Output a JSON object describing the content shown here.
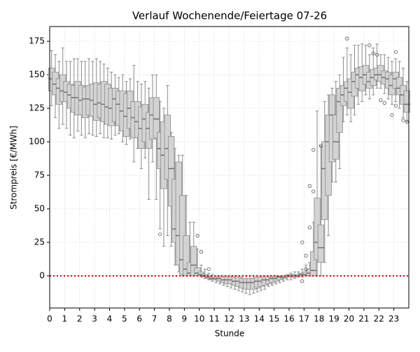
{
  "chart_data": {
    "type": "box",
    "title": "Verlauf Wochenende/Feiertage 07-26",
    "xlabel": "Stunde",
    "ylabel": "Strompreis [€/MWh]",
    "xlim": [
      0,
      24
    ],
    "xticks": [
      0,
      1,
      2,
      3,
      4,
      5,
      6,
      7,
      8,
      9,
      10,
      11,
      12,
      13,
      14,
      15,
      16,
      17,
      18,
      19,
      20,
      21,
      22,
      23
    ],
    "ylim": [
      -24,
      186
    ],
    "yticks": [
      0,
      25,
      50,
      75,
      100,
      125,
      150,
      175
    ],
    "grid": true,
    "box_color": "#d3d3d3",
    "edge_color": "#8c8c8c",
    "median_color": "#6e6e6e",
    "hline": {
      "value": 0,
      "color": "#e00000"
    },
    "x": [
      0.125,
      0.375,
      0.625,
      0.875,
      1.125,
      1.375,
      1.625,
      1.875,
      2.125,
      2.375,
      2.625,
      2.875,
      3.125,
      3.375,
      3.625,
      3.875,
      4.125,
      4.375,
      4.625,
      4.875,
      5.125,
      5.375,
      5.625,
      5.875,
      6.125,
      6.375,
      6.625,
      6.875,
      7.125,
      7.375,
      7.625,
      7.875,
      8.125,
      8.375,
      8.625,
      8.875,
      9.125,
      9.375,
      9.625,
      9.875,
      10.125,
      10.375,
      10.625,
      10.875,
      11.125,
      11.375,
      11.625,
      11.875,
      12.125,
      12.375,
      12.625,
      12.875,
      13.125,
      13.375,
      13.625,
      13.875,
      14.125,
      14.375,
      14.625,
      14.875,
      15.125,
      15.375,
      15.625,
      15.875,
      16.125,
      16.375,
      16.625,
      16.875,
      17.125,
      17.375,
      17.625,
      17.875,
      18.125,
      18.375,
      18.625,
      18.875,
      19.125,
      19.375,
      19.625,
      19.875,
      20.125,
      20.375,
      20.625,
      20.875,
      21.125,
      21.375,
      21.625,
      21.875,
      22.125,
      22.375,
      22.625,
      22.875,
      23.125,
      23.375,
      23.625,
      23.875
    ],
    "whislo": [
      127,
      118,
      110,
      113,
      110,
      105,
      103,
      108,
      105,
      103,
      106,
      105,
      104,
      106,
      103,
      103,
      102,
      105,
      106,
      100,
      98,
      102,
      85,
      95,
      80,
      88,
      57,
      85,
      57,
      35,
      22,
      30,
      22,
      8,
      3,
      0,
      0,
      0,
      0,
      0,
      -1,
      -2,
      -3,
      -4,
      -5,
      -6,
      -7,
      -8,
      -9,
      -10,
      -11,
      -12,
      -13,
      -14,
      -13,
      -12,
      -11,
      -10,
      -8,
      -7,
      -6,
      -5,
      -4,
      -3,
      -3,
      -2,
      -1,
      -1,
      0,
      0,
      0,
      0,
      0,
      10,
      30,
      70,
      70,
      80,
      115,
      120,
      115,
      120,
      128,
      130,
      135,
      132,
      135,
      140,
      140,
      136,
      132,
      128,
      130,
      125,
      118,
      115
    ],
    "q1": [
      138,
      135,
      128,
      130,
      130,
      125,
      122,
      120,
      120,
      118,
      120,
      119,
      116,
      118,
      115,
      113,
      112,
      115,
      112,
      108,
      104,
      110,
      103,
      103,
      95,
      100,
      95,
      102,
      103,
      80,
      65,
      72,
      52,
      25,
      8,
      1,
      0,
      0,
      0,
      0,
      0,
      -1,
      -2,
      -3,
      -3,
      -4,
      -5,
      -6,
      -6,
      -7,
      -8,
      -9,
      -10,
      -10,
      -10,
      -9,
      -8,
      -7,
      -6,
      -5,
      -4,
      -3,
      -2,
      -1,
      -1,
      -1,
      0,
      0,
      0,
      0,
      0,
      12,
      10,
      42,
      60,
      85,
      87,
      107,
      127,
      130,
      125,
      134,
      140,
      138,
      143,
      140,
      142,
      146,
      145,
      143,
      140,
      135,
      140,
      135,
      128,
      122
    ],
    "med": [
      147,
      143,
      140,
      138,
      137,
      135,
      133,
      133,
      131,
      132,
      132,
      131,
      128,
      129,
      128,
      126,
      125,
      132,
      128,
      123,
      119,
      125,
      118,
      115,
      110,
      117,
      110,
      120,
      117,
      95,
      90,
      95,
      80,
      35,
      30,
      12,
      5,
      2,
      8,
      2,
      1,
      0,
      -1,
      -2,
      -2,
      -2,
      -3,
      -3,
      -3,
      -4,
      -4,
      -5,
      -5,
      -5,
      -5,
      -4,
      -4,
      -3,
      -3,
      -2,
      -2,
      -1,
      -1,
      0,
      0,
      0,
      0,
      1,
      1,
      2,
      4,
      25,
      21,
      80,
      100,
      120,
      100,
      130,
      135,
      140,
      137,
      145,
      150,
      148,
      150,
      145,
      148,
      150,
      150,
      148,
      147,
      142,
      147,
      140,
      135,
      128
    ],
    "q3": [
      155,
      152,
      147,
      150,
      145,
      143,
      142,
      145,
      142,
      141,
      142,
      143,
      144,
      143,
      145,
      143,
      140,
      140,
      138,
      138,
      136,
      138,
      130,
      130,
      126,
      128,
      122,
      133,
      133,
      107,
      115,
      120,
      104,
      72,
      85,
      60,
      30,
      10,
      22,
      6,
      3,
      1,
      0,
      -1,
      -1,
      -1,
      -1,
      -1,
      -1,
      -1,
      -1,
      -2,
      -2,
      -2,
      -2,
      -1,
      -1,
      -1,
      -1,
      -1,
      -1,
      0,
      0,
      0,
      1,
      1,
      1,
      2,
      3,
      5,
      18,
      58,
      38,
      100,
      120,
      135,
      120,
      140,
      142,
      145,
      147,
      152,
      155,
      156,
      157,
      152,
      154,
      155,
      157,
      153,
      152,
      150,
      152,
      148,
      142,
      138
    ],
    "whishi": [
      168,
      165,
      160,
      170,
      160,
      160,
      162,
      162,
      160,
      160,
      162,
      160,
      162,
      160,
      158,
      155,
      152,
      150,
      148,
      150,
      145,
      147,
      157,
      145,
      143,
      145,
      140,
      150,
      150,
      130,
      125,
      142,
      107,
      95,
      90,
      90,
      60,
      40,
      40,
      20,
      8,
      5,
      2,
      1,
      0,
      0,
      0,
      0,
      0,
      0,
      0,
      0,
      0,
      0,
      0,
      0,
      0,
      0,
      0,
      0,
      0,
      0,
      0,
      1,
      2,
      3,
      3,
      5,
      8,
      10,
      40,
      123,
      97,
      130,
      135,
      140,
      145,
      150,
      163,
      170,
      165,
      172,
      172,
      173,
      172,
      165,
      170,
      173,
      165,
      165,
      163,
      160,
      162,
      160,
      155,
      145
    ],
    "outliers_x": [
      7.375,
      9.875,
      10.125,
      10.625,
      16.875,
      16.875,
      17.125,
      17.125,
      17.375,
      17.375,
      17.625,
      17.625,
      18.125,
      19.875,
      21.375,
      21.625,
      21.875,
      22.125,
      22.375,
      22.875,
      23.125,
      23.125,
      23.625,
      23.875
    ],
    "outliers_y": [
      31,
      30,
      18,
      5,
      25,
      -4,
      5,
      15,
      36,
      67,
      63,
      94,
      97,
      177,
      172,
      166,
      165,
      131,
      129,
      120,
      167,
      127,
      116,
      115
    ]
  }
}
